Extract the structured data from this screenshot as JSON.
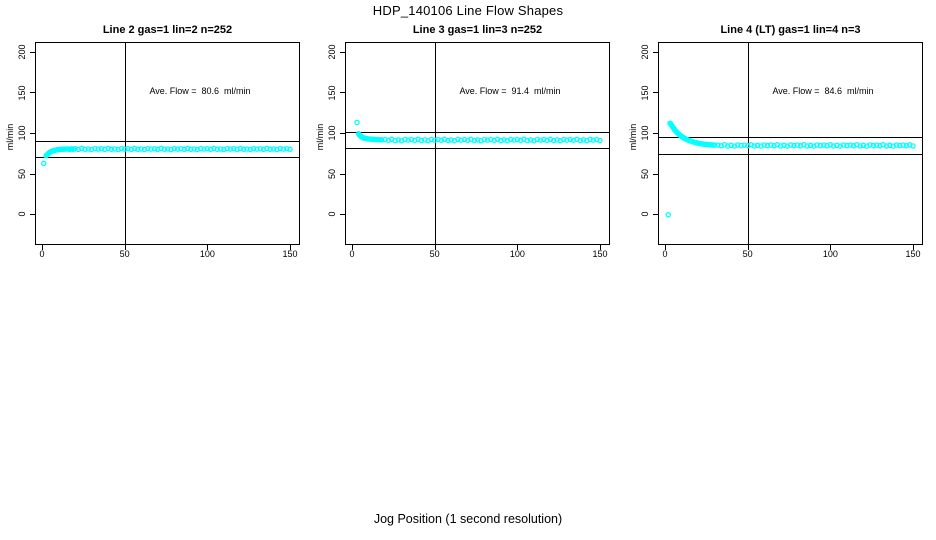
{
  "title": "HDP_140106  Line Flow Shapes",
  "xlabel": "Jog Position (1 second resolution)",
  "colors": {
    "points": "#00FFFF",
    "axis": "#000000",
    "reflines": "#000000",
    "background": "#FFFFFF"
  },
  "chart_data": [
    {
      "type": "scatter",
      "title": "Line 2 gas=1 lin=2 n=252",
      "ylabel": "ml/min",
      "annotation": "Ave. Flow =  80.6  ml/min",
      "ave_flow": 80.6,
      "xticks": [
        0,
        50,
        100,
        150
      ],
      "yticks": [
        0,
        50,
        100,
        150,
        200
      ],
      "xlim": [
        0,
        150
      ],
      "ylim": [
        -38,
        212
      ],
      "vline_x": 50,
      "hlines": [
        90.6,
        70.6
      ],
      "points": [
        [
          1,
          62.5
        ],
        [
          2.5,
          72
        ],
        [
          3,
          73
        ],
        [
          3.5,
          74
        ],
        [
          4,
          75
        ],
        [
          4.5,
          75.8
        ],
        [
          5,
          76.5
        ],
        [
          5.5,
          77
        ],
        [
          6,
          77.5
        ],
        [
          6.5,
          77.9
        ],
        [
          7,
          78.2
        ],
        [
          7.5,
          78.5
        ],
        [
          8,
          78.8
        ],
        [
          9,
          79.2
        ],
        [
          10,
          79.5
        ],
        [
          11,
          79.7
        ],
        [
          12,
          79.9
        ],
        [
          13,
          80
        ],
        [
          14,
          80.1
        ],
        [
          15,
          80.2
        ],
        [
          16,
          80.3
        ],
        [
          17,
          79.8
        ],
        [
          18,
          80.5
        ],
        [
          19,
          79.9
        ],
        [
          20,
          80.6
        ],
        [
          22,
          79.7
        ],
        [
          24,
          81.0
        ],
        [
          26,
          79.9
        ],
        [
          28,
          80.3
        ],
        [
          30,
          79.5
        ],
        [
          32,
          80.8
        ],
        [
          34,
          80.1
        ],
        [
          36,
          80.6
        ],
        [
          38,
          79.7
        ],
        [
          40,
          81.0
        ],
        [
          42,
          79.9
        ],
        [
          44,
          80.3
        ],
        [
          46,
          79.5
        ],
        [
          48,
          80.8
        ],
        [
          50,
          80.1
        ],
        [
          52,
          80.6
        ],
        [
          54,
          79.7
        ],
        [
          56,
          81.0
        ],
        [
          58,
          79.9
        ],
        [
          60,
          80.3
        ],
        [
          62,
          79.5
        ],
        [
          64,
          80.8
        ],
        [
          66,
          80.1
        ],
        [
          68,
          80.6
        ],
        [
          70,
          79.7
        ],
        [
          72,
          81.0
        ],
        [
          74,
          79.9
        ],
        [
          76,
          80.3
        ],
        [
          78,
          79.5
        ],
        [
          80,
          80.8
        ],
        [
          82,
          80.1
        ],
        [
          84,
          80.6
        ],
        [
          86,
          79.7
        ],
        [
          88,
          81.0
        ],
        [
          90,
          79.9
        ],
        [
          92,
          80.3
        ],
        [
          94,
          79.5
        ],
        [
          96,
          80.8
        ],
        [
          98,
          80.1
        ],
        [
          100,
          80.6
        ],
        [
          102,
          79.7
        ],
        [
          104,
          81.0
        ],
        [
          106,
          79.9
        ],
        [
          108,
          80.3
        ],
        [
          110,
          79.5
        ],
        [
          112,
          80.8
        ],
        [
          114,
          80.1
        ],
        [
          116,
          80.6
        ],
        [
          118,
          79.7
        ],
        [
          120,
          81.0
        ],
        [
          122,
          79.9
        ],
        [
          124,
          80.3
        ],
        [
          126,
          79.5
        ],
        [
          128,
          80.8
        ],
        [
          130,
          80.1
        ],
        [
          132,
          80.6
        ],
        [
          134,
          79.7
        ],
        [
          136,
          81.0
        ],
        [
          138,
          79.9
        ],
        [
          140,
          80.3
        ],
        [
          142,
          79.5
        ],
        [
          144,
          80.8
        ],
        [
          146,
          80.1
        ],
        [
          148,
          80.6
        ],
        [
          150,
          79.9
        ]
      ]
    },
    {
      "type": "scatter",
      "title": "Line 3 gas=1 lin=3 n=252",
      "ylabel": "ml/min",
      "annotation": "Ave. Flow =  91.4  ml/min",
      "ave_flow": 91.4,
      "xticks": [
        0,
        50,
        100,
        150
      ],
      "yticks": [
        0,
        50,
        100,
        150,
        200
      ],
      "xlim": [
        0,
        150
      ],
      "ylim": [
        -38,
        212
      ],
      "vline_x": 50,
      "hlines": [
        101.4,
        81.4
      ],
      "points": [
        [
          3,
          113
        ],
        [
          4,
          99
        ],
        [
          4.5,
          97.5
        ],
        [
          5,
          96.5
        ],
        [
          5.5,
          95.7
        ],
        [
          6,
          95
        ],
        [
          6.5,
          94.5
        ],
        [
          7,
          94
        ],
        [
          7.5,
          93.7
        ],
        [
          8,
          93.4
        ],
        [
          9,
          93
        ],
        [
          10,
          92.7
        ],
        [
          11,
          92.5
        ],
        [
          12,
          92.3
        ],
        [
          13,
          92.1
        ],
        [
          14,
          92
        ],
        [
          15,
          91.9
        ],
        [
          16,
          91.8
        ],
        [
          17,
          91.7
        ],
        [
          18,
          91.6
        ],
        [
          20,
          91.9
        ],
        [
          22,
          91.0
        ],
        [
          24,
          92.2
        ],
        [
          26,
          90.8
        ],
        [
          28,
          91.5
        ],
        [
          30,
          90.5
        ],
        [
          32,
          92.0
        ],
        [
          34,
          91.2
        ],
        [
          36,
          91.9
        ],
        [
          38,
          91.0
        ],
        [
          40,
          92.2
        ],
        [
          42,
          90.8
        ],
        [
          44,
          91.5
        ],
        [
          46,
          90.5
        ],
        [
          48,
          92.0
        ],
        [
          50,
          91.2
        ],
        [
          52,
          91.9
        ],
        [
          54,
          91.0
        ],
        [
          56,
          92.2
        ],
        [
          58,
          90.8
        ],
        [
          60,
          91.5
        ],
        [
          62,
          90.5
        ],
        [
          64,
          92.0
        ],
        [
          66,
          91.2
        ],
        [
          68,
          91.9
        ],
        [
          70,
          91.0
        ],
        [
          72,
          92.2
        ],
        [
          74,
          90.8
        ],
        [
          76,
          91.5
        ],
        [
          78,
          90.5
        ],
        [
          80,
          92.0
        ],
        [
          82,
          91.2
        ],
        [
          84,
          91.9
        ],
        [
          86,
          91.0
        ],
        [
          88,
          92.2
        ],
        [
          90,
          90.8
        ],
        [
          92,
          91.5
        ],
        [
          94,
          90.5
        ],
        [
          96,
          92.0
        ],
        [
          98,
          91.2
        ],
        [
          100,
          91.9
        ],
        [
          102,
          91.0
        ],
        [
          104,
          92.2
        ],
        [
          106,
          90.8
        ],
        [
          108,
          91.5
        ],
        [
          110,
          90.5
        ],
        [
          112,
          92.0
        ],
        [
          114,
          91.2
        ],
        [
          116,
          91.9
        ],
        [
          118,
          91.0
        ],
        [
          120,
          92.2
        ],
        [
          122,
          90.8
        ],
        [
          124,
          91.5
        ],
        [
          126,
          90.5
        ],
        [
          128,
          92.0
        ],
        [
          130,
          91.2
        ],
        [
          132,
          91.9
        ],
        [
          134,
          91.0
        ],
        [
          136,
          92.2
        ],
        [
          138,
          90.8
        ],
        [
          140,
          91.5
        ],
        [
          142,
          90.5
        ],
        [
          144,
          92.0
        ],
        [
          146,
          91.2
        ],
        [
          148,
          91.9
        ],
        [
          150,
          90.8
        ]
      ]
    },
    {
      "type": "scatter",
      "title": "Line 4 (LT) gas=1 lin=4 n=3",
      "ylabel": "ml/min",
      "annotation": "Ave. Flow =  84.6  ml/min",
      "ave_flow": 84.6,
      "xticks": [
        0,
        50,
        100,
        150
      ],
      "yticks": [
        0,
        50,
        100,
        150,
        200
      ],
      "xlim": [
        0,
        150
      ],
      "ylim": [
        -38,
        212
      ],
      "vline_x": 50,
      "hlines": [
        94.6,
        74.6
      ],
      "points": [
        [
          2,
          -1
        ],
        [
          3,
          112
        ],
        [
          3.5,
          111
        ],
        [
          4,
          109.5
        ],
        [
          4.5,
          108
        ],
        [
          5,
          106.5
        ],
        [
          5.5,
          105
        ],
        [
          6,
          103.5
        ],
        [
          6.5,
          102.3
        ],
        [
          7,
          101.2
        ],
        [
          7.5,
          100.2
        ],
        [
          8,
          99.2
        ],
        [
          8.5,
          98.3
        ],
        [
          9,
          97.4
        ],
        [
          9.5,
          96.6
        ],
        [
          10,
          95.8
        ],
        [
          10.5,
          95.1
        ],
        [
          11,
          94.4
        ],
        [
          11.5,
          93.8
        ],
        [
          12,
          93.2
        ],
        [
          12.5,
          92.7
        ],
        [
          13,
          92.2
        ],
        [
          13.5,
          91.7
        ],
        [
          14,
          91.3
        ],
        [
          15,
          90.4
        ],
        [
          16,
          89.7
        ],
        [
          17,
          89
        ],
        [
          18,
          88.4
        ],
        [
          19,
          87.9
        ],
        [
          20,
          87.4
        ],
        [
          21,
          87
        ],
        [
          22,
          86.7
        ],
        [
          23,
          86.4
        ],
        [
          24,
          86.1
        ],
        [
          25,
          85.9
        ],
        [
          26,
          85.7
        ],
        [
          27,
          85.5
        ],
        [
          28,
          85.3
        ],
        [
          29,
          85.2
        ],
        [
          30,
          85.1
        ],
        [
          32,
          85.1
        ],
        [
          34,
          84.2
        ],
        [
          36,
          85.4
        ],
        [
          38,
          84.0
        ],
        [
          40,
          84.8
        ],
        [
          42,
          83.8
        ],
        [
          44,
          85.2
        ],
        [
          46,
          84.4
        ],
        [
          48,
          85.1
        ],
        [
          50,
          84.2
        ],
        [
          52,
          85.4
        ],
        [
          54,
          84.0
        ],
        [
          56,
          84.8
        ],
        [
          58,
          83.8
        ],
        [
          60,
          85.2
        ],
        [
          62,
          84.4
        ],
        [
          64,
          85.1
        ],
        [
          66,
          84.2
        ],
        [
          68,
          85.4
        ],
        [
          70,
          84.0
        ],
        [
          72,
          84.8
        ],
        [
          74,
          83.8
        ],
        [
          76,
          85.2
        ],
        [
          78,
          84.4
        ],
        [
          80,
          85.1
        ],
        [
          82,
          84.2
        ],
        [
          84,
          85.4
        ],
        [
          86,
          84.0
        ],
        [
          88,
          84.8
        ],
        [
          90,
          83.8
        ],
        [
          92,
          85.2
        ],
        [
          94,
          84.4
        ],
        [
          96,
          85.1
        ],
        [
          98,
          84.2
        ],
        [
          100,
          85.4
        ],
        [
          102,
          84.0
        ],
        [
          104,
          84.8
        ],
        [
          106,
          83.8
        ],
        [
          108,
          85.2
        ],
        [
          110,
          84.4
        ],
        [
          112,
          85.1
        ],
        [
          114,
          84.2
        ],
        [
          116,
          85.4
        ],
        [
          118,
          84.0
        ],
        [
          120,
          84.8
        ],
        [
          122,
          83.8
        ],
        [
          124,
          85.2
        ],
        [
          126,
          84.4
        ],
        [
          128,
          85.1
        ],
        [
          130,
          84.2
        ],
        [
          132,
          85.4
        ],
        [
          134,
          84.0
        ],
        [
          136,
          84.8
        ],
        [
          138,
          83.8
        ],
        [
          140,
          85.2
        ],
        [
          142,
          84.4
        ],
        [
          144,
          85.1
        ],
        [
          146,
          84.2
        ],
        [
          148,
          85.4
        ],
        [
          150,
          84.0
        ]
      ]
    }
  ]
}
